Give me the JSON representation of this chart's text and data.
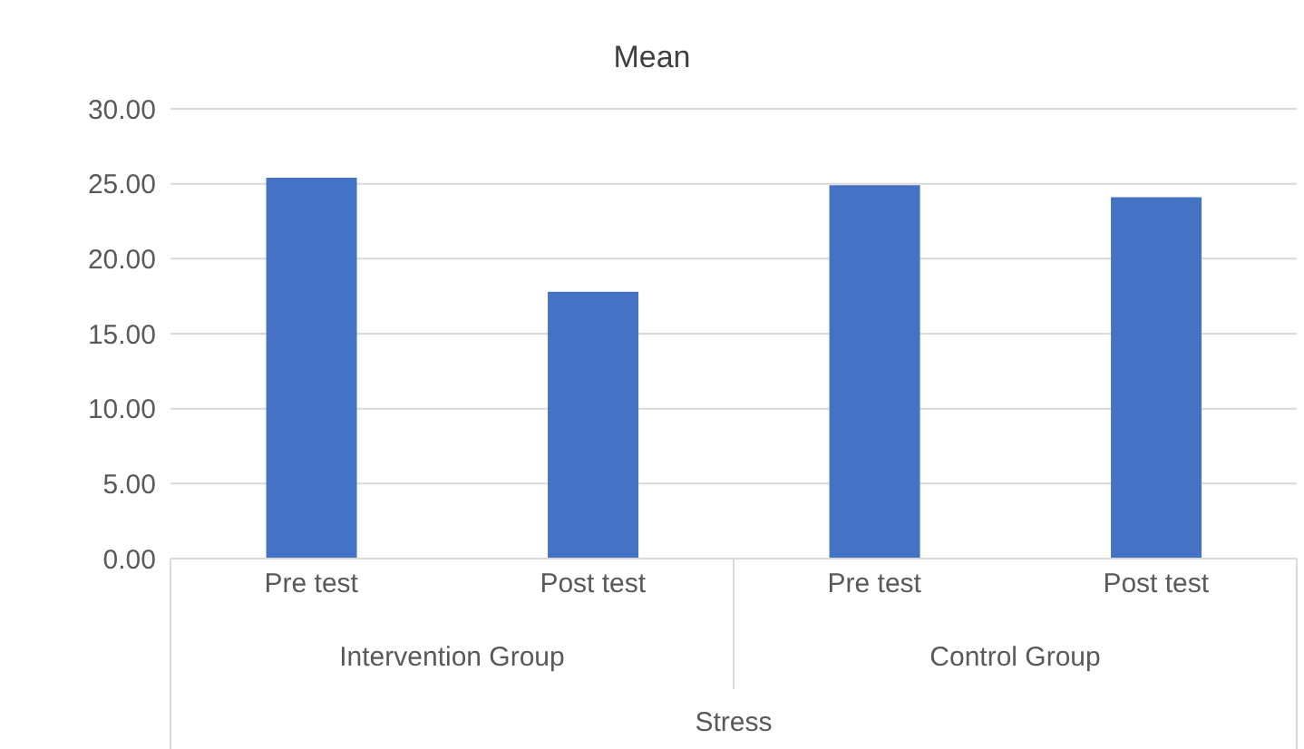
{
  "chart_data": {
    "type": "bar",
    "title": "Mean",
    "xlabel": "Stress",
    "categories": [
      "Pre test",
      "Post test",
      "Pre test",
      "Post test"
    ],
    "values": [
      25.4,
      17.8,
      24.9,
      24.1
    ],
    "color": "#4472c4",
    "ylim": [
      0,
      30
    ],
    "yticks": [
      {
        "value": 0,
        "label": "0.00"
      },
      {
        "value": 5,
        "label": "5.00"
      },
      {
        "value": 10,
        "label": "10.00"
      },
      {
        "value": 15,
        "label": "15.00"
      },
      {
        "value": 20,
        "label": "20.00"
      },
      {
        "value": 25,
        "label": "25.00"
      },
      {
        "value": 30,
        "label": "30.00"
      }
    ],
    "grid": "y",
    "annotations": [
      "Intervention Group",
      "Control Group"
    ]
  }
}
